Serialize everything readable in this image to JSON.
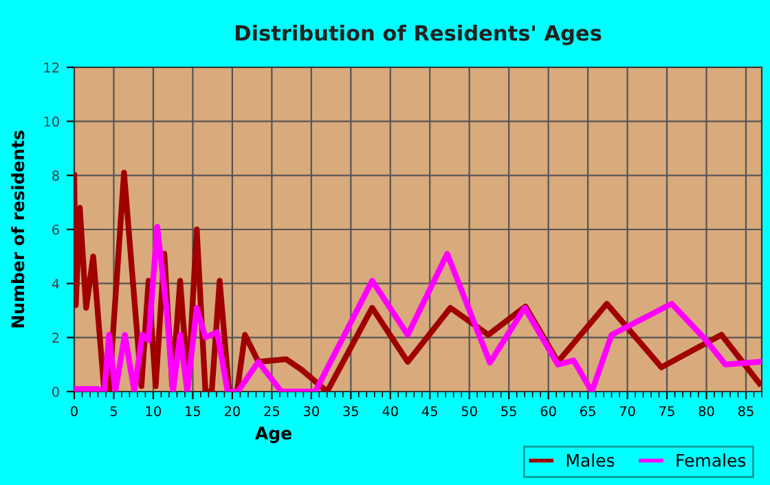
{
  "chart_data": {
    "type": "line",
    "title": "Distribution of Residents' Ages",
    "xlabel": "Age",
    "ylabel": "Number of residents",
    "xlim": [
      0,
      87
    ],
    "ylim": [
      0,
      12
    ],
    "xticks": [
      0,
      5,
      10,
      15,
      20,
      25,
      30,
      35,
      40,
      45,
      50,
      55,
      60,
      65,
      70,
      75,
      80,
      85
    ],
    "yticks": [
      0,
      2,
      4,
      6,
      8,
      10,
      12
    ],
    "grid": true,
    "legend": "bottom right",
    "line_style": "solid",
    "marker": "none",
    "series": [
      {
        "name": "Males",
        "color": "#a00000",
        "x": [
          0,
          0.2,
          0.7,
          1.5,
          2.4,
          3.8,
          4.4,
          6.3,
          8.5,
          9.4,
          10.3,
          11.4,
          12.4,
          13.4,
          14.4,
          15.5,
          16.6,
          17.4,
          18.4,
          19.6,
          20.6,
          21.6,
          23.3,
          26.8,
          28.8,
          32,
          37.7,
          42.2,
          47.6,
          52.4,
          57.1,
          61.2,
          67.4,
          74.3,
          81.9,
          86.7
        ],
        "values": [
          8,
          3.2,
          6.8,
          3.1,
          5,
          0,
          0,
          8.1,
          0.2,
          4.1,
          0.2,
          5.1,
          0.2,
          4.1,
          0.2,
          6,
          0,
          0,
          4.1,
          0,
          0,
          2.1,
          1.1,
          1.2,
          0.8,
          0,
          3.1,
          1.1,
          3.1,
          2.1,
          3.15,
          1.1,
          3.25,
          0.9,
          2.1,
          0.3
        ]
      },
      {
        "name": "Females",
        "color": "#ff00ff",
        "x": [
          0,
          2.9,
          3.8,
          4.4,
          5.2,
          6.4,
          7.6,
          8.6,
          9.4,
          10.5,
          11.7,
          12.5,
          13.4,
          14.3,
          15.5,
          16.6,
          18.1,
          19.4,
          20.7,
          23.3,
          26.2,
          30.5,
          37.7,
          42.2,
          47.2,
          52.6,
          57,
          61.2,
          63.2,
          65.5,
          68,
          75.6,
          79.8,
          82.4,
          86.7
        ],
        "values": [
          0.1,
          0.1,
          0,
          2.1,
          0,
          2.1,
          0,
          2.1,
          1.9,
          6.1,
          3,
          0,
          2.1,
          0,
          3.1,
          2,
          2.2,
          0,
          0,
          1.1,
          0,
          0,
          4.1,
          2.1,
          5.1,
          1.07,
          3.1,
          1,
          1.15,
          0,
          2.1,
          3.25,
          1.95,
          1,
          1.1
        ]
      }
    ]
  }
}
